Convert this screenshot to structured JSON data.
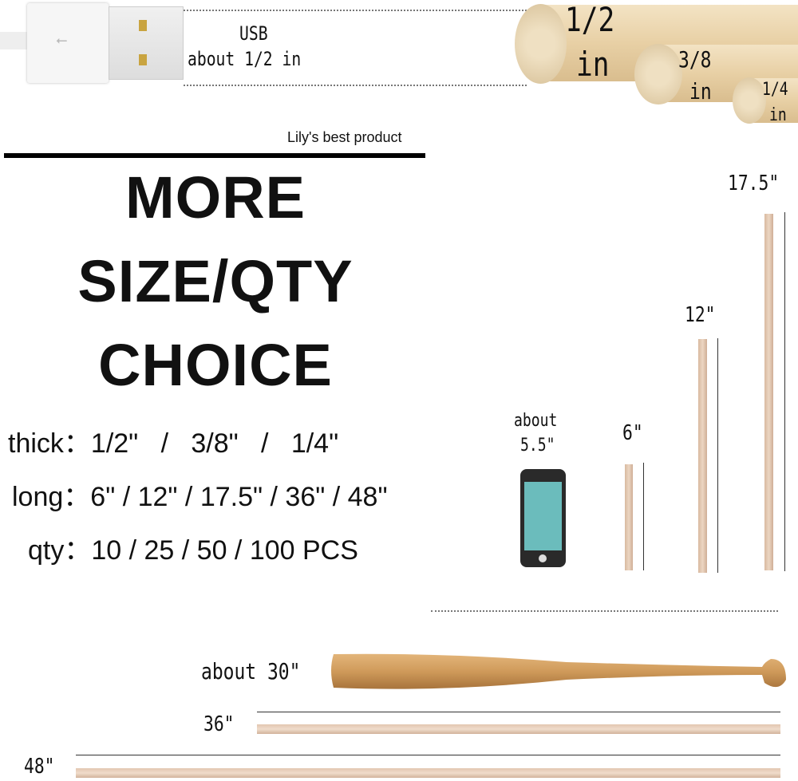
{
  "usb": {
    "title": "USB",
    "size": "about 1/2 in"
  },
  "dowel_labels": [
    {
      "size": "1/2",
      "unit": "in"
    },
    {
      "size": "3/8",
      "unit": "in"
    },
    {
      "size": "1/4",
      "unit": "in"
    }
  ],
  "brand": "Lily's best product",
  "headline": [
    "MORE",
    "SIZE/QTY",
    "CHOICE"
  ],
  "specs": {
    "thick": "thick：1/2\"   /   3/8\"   /   1/4\"",
    "long": "long：6\" / 12\" / 17.5\" / 36\" / 48\"",
    "qty": "qty：10 / 25 / 50 / 100 PCS"
  },
  "phone": {
    "label1": "about",
    "label2": "5.5\"",
    "screen_color": "#6bbcbc"
  },
  "lengths": {
    "l6": "6\"",
    "l12": "12\"",
    "l175": "17.5\"",
    "l36": "36\"",
    "l48": "48\""
  },
  "bat": {
    "label": "about 30\""
  }
}
